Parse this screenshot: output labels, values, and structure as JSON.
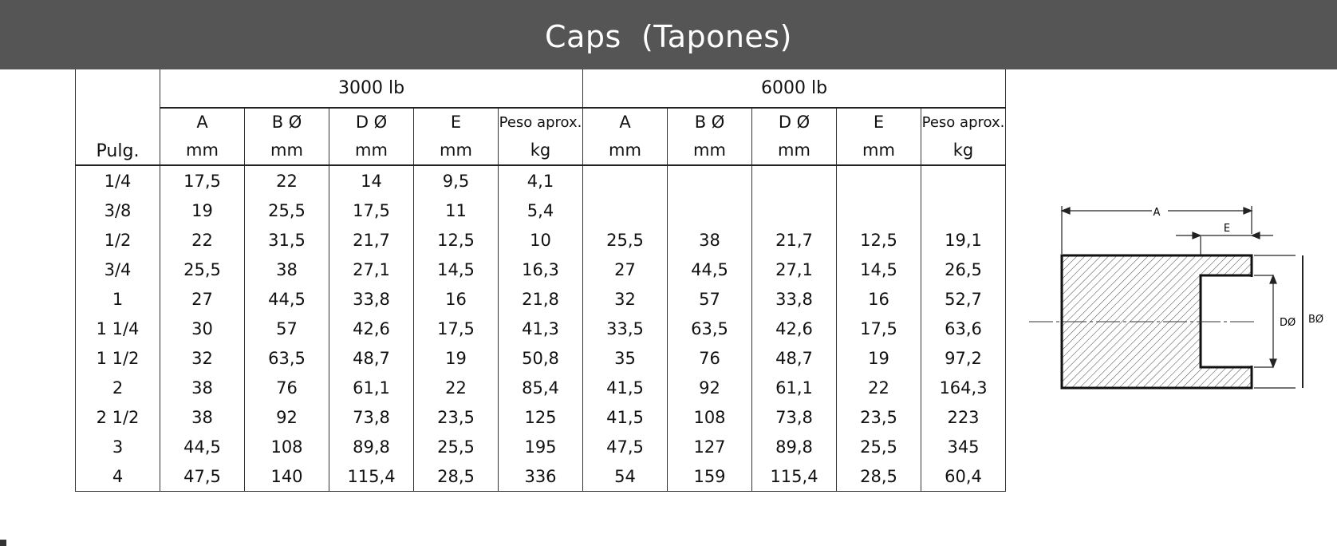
{
  "header": {
    "title": "Caps  (Tapones)",
    "background": "#555555"
  },
  "table": {
    "first_col_header": "Pulg.",
    "groups": [
      "3000 lb",
      "6000 lb"
    ],
    "columns": [
      {
        "label": "A",
        "unit": "mm"
      },
      {
        "label": "B Ø",
        "unit": "mm"
      },
      {
        "label": "D Ø",
        "unit": "mm"
      },
      {
        "label": "E",
        "unit": "mm"
      },
      {
        "label": "Peso aprox.",
        "unit": "kg"
      }
    ],
    "rows": [
      [
        "1/4",
        "17,5",
        "22",
        "14",
        "9,5",
        "4,1",
        "",
        "",
        "",
        "",
        ""
      ],
      [
        "3/8",
        "19",
        "25,5",
        "17,5",
        "11",
        "5,4",
        "",
        "",
        "",
        "",
        ""
      ],
      [
        "1/2",
        "22",
        "31,5",
        "21,7",
        "12,5",
        "10",
        "25,5",
        "38",
        "21,7",
        "12,5",
        "19,1"
      ],
      [
        "3/4",
        "25,5",
        "38",
        "27,1",
        "14,5",
        "16,3",
        "27",
        "44,5",
        "27,1",
        "14,5",
        "26,5"
      ],
      [
        "1",
        "27",
        "44,5",
        "33,8",
        "16",
        "21,8",
        "32",
        "57",
        "33,8",
        "16",
        "52,7"
      ],
      [
        "1 1/4",
        "30",
        "57",
        "42,6",
        "17,5",
        "41,3",
        "33,5",
        "63,5",
        "42,6",
        "17,5",
        "63,6"
      ],
      [
        "1 1/2",
        "32",
        "63,5",
        "48,7",
        "19",
        "50,8",
        "35",
        "76",
        "48,7",
        "19",
        "97,2"
      ],
      [
        "2",
        "38",
        "76",
        "61,1",
        "22",
        "85,4",
        "41,5",
        "92",
        "61,1",
        "22",
        "164,3"
      ],
      [
        "2 1/2",
        "38",
        "92",
        "73,8",
        "23,5",
        "125",
        "41,5",
        "108",
        "73,8",
        "23,5",
        "223"
      ],
      [
        "3",
        "44,5",
        "108",
        "89,8",
        "25,5",
        "195",
        "47,5",
        "127",
        "89,8",
        "25,5",
        "345"
      ],
      [
        "4",
        "47,5",
        "140",
        "115,4",
        "28,5",
        "336",
        "54",
        "159",
        "115,4",
        "28,5",
        "60,4"
      ]
    ]
  },
  "diagram": {
    "label_a": "A",
    "label_e": "E",
    "label_d": "DØ",
    "label_b": "BØ"
  }
}
